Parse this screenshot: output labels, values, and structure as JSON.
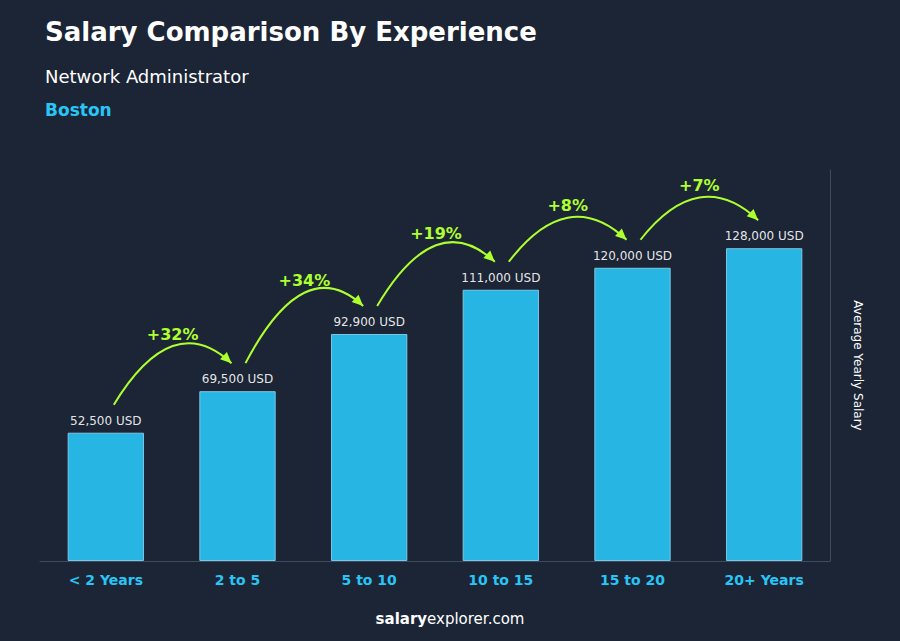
{
  "chart_data": {
    "type": "bar",
    "title": "Salary Comparison By Experience",
    "subtitle": "Network Administrator",
    "city": "Boston",
    "categories": [
      "< 2 Years",
      "2 to 5",
      "5 to 10",
      "10 to 15",
      "15 to 20",
      "20+ Years"
    ],
    "values": [
      52500,
      69500,
      92900,
      111000,
      120000,
      128000
    ],
    "value_labels": [
      "52,500 USD",
      "69,500 USD",
      "92,900 USD",
      "111,000 USD",
      "120,000 USD",
      "128,000 USD"
    ],
    "data_labels": true,
    "color": "#29C5F6",
    "ylabel": "Average Yearly Salary",
    "ylim": [
      0,
      160000
    ],
    "grid": false,
    "tick_labels": "x",
    "annotations": [
      {
        "text": "+32%",
        "from": "< 2 Years",
        "to": "2 to 5"
      },
      {
        "text": "+34%",
        "from": "2 to 5",
        "to": "5 to 10"
      },
      {
        "text": "+19%",
        "from": "5 to 10",
        "to": "10 to 15"
      },
      {
        "text": "+8%",
        "from": "10 to 15",
        "to": "15 to 20"
      },
      {
        "text": "+7%",
        "from": "15 to 20",
        "to": "20+ Years"
      }
    ],
    "footer": [
      "salary",
      "explorer.com"
    ]
  }
}
